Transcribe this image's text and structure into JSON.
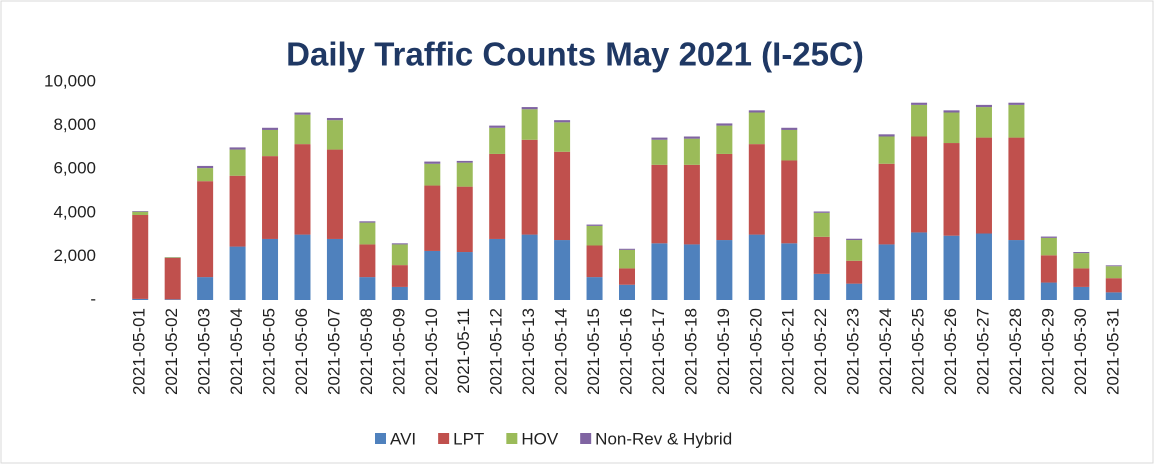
{
  "chart_data": {
    "type": "stacked_bar",
    "title": "Daily Traffic Counts May 2021 (I-25C)",
    "categories": [
      "2021-05-01",
      "2021-05-02",
      "2021-05-03",
      "2021-05-04",
      "2021-05-05",
      "2021-05-06",
      "2021-05-07",
      "2021-05-08",
      "2021-05-09",
      "2021-05-10",
      "2021-05-11",
      "2021-05-12",
      "2021-05-13",
      "2021-05-14",
      "2021-05-15",
      "2021-05-16",
      "2021-05-17",
      "2021-05-18",
      "2021-05-19",
      "2021-05-20",
      "2021-05-21",
      "2021-05-22",
      "2021-05-23",
      "2021-05-24",
      "2021-05-25",
      "2021-05-26",
      "2021-05-27",
      "2021-05-28",
      "2021-05-29",
      "2021-05-30",
      "2021-05-31"
    ],
    "series": [
      {
        "name": "AVI",
        "color": "#4f81bd",
        "values": [
          50,
          30,
          1050,
          2450,
          2800,
          3000,
          2800,
          1050,
          600,
          2250,
          2200,
          2800,
          3000,
          2750,
          1050,
          700,
          2600,
          2550,
          2750,
          3000,
          2600,
          1200,
          750,
          2550,
          3100,
          2950,
          3050,
          2750,
          800,
          600,
          350
        ]
      },
      {
        "name": "LPT",
        "color": "#c0504d",
        "values": [
          3850,
          1900,
          4400,
          3250,
          3800,
          4150,
          4100,
          1500,
          1000,
          3000,
          3000,
          3900,
          4350,
          4050,
          1450,
          750,
          3600,
          3650,
          3950,
          4150,
          3800,
          1700,
          1050,
          3700,
          4400,
          4250,
          4400,
          4700,
          1250,
          850,
          650
        ]
      },
      {
        "name": "HOV",
        "color": "#9bbb59",
        "values": [
          150,
          30,
          600,
          1200,
          1200,
          1350,
          1350,
          1000,
          950,
          1000,
          1100,
          1200,
          1400,
          1350,
          900,
          850,
          1150,
          1200,
          1300,
          1450,
          1400,
          1100,
          950,
          1250,
          1450,
          1400,
          1400,
          1500,
          800,
          700,
          550
        ]
      },
      {
        "name": "Non-Rev & Hybrid",
        "color": "#8064a2",
        "values": [
          30,
          10,
          100,
          100,
          100,
          100,
          100,
          60,
          50,
          100,
          80,
          100,
          100,
          100,
          60,
          50,
          100,
          100,
          100,
          100,
          100,
          60,
          60,
          100,
          100,
          100,
          100,
          100,
          60,
          50,
          40
        ]
      }
    ],
    "ylim": [
      0,
      10000
    ],
    "yticks": [
      {
        "value": 0,
        "label": "-"
      },
      {
        "value": 2000,
        "label": "2,000"
      },
      {
        "value": 4000,
        "label": "4,000"
      },
      {
        "value": 6000,
        "label": "6,000"
      },
      {
        "value": 8000,
        "label": "8,000"
      },
      {
        "value": 10000,
        "label": "10,000"
      }
    ],
    "grid": false
  }
}
